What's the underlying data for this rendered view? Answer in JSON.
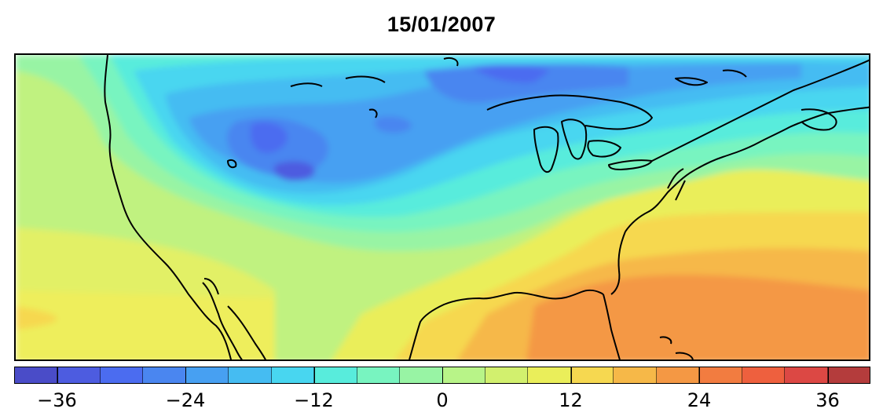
{
  "title": "15/01/2007",
  "map": {
    "variable_range": [
      -40,
      40
    ],
    "coastline_color": "#000000"
  },
  "colorbar": {
    "levels": [
      -40,
      -36,
      -32,
      -28,
      -24,
      -20,
      -16,
      -12,
      -8,
      -4,
      0,
      4,
      8,
      12,
      16,
      20,
      24,
      28,
      32,
      36,
      40
    ],
    "colors": [
      "#4a4cc8",
      "#4d5ce0",
      "#4b6cf0",
      "#4a86f0",
      "#47a0f2",
      "#45bcf2",
      "#48d6f0",
      "#58ecdc",
      "#78f4c0",
      "#98f4a4",
      "#b8f488",
      "#d2f06e",
      "#eaee5a",
      "#f6d850",
      "#f6b848",
      "#f49844",
      "#f27c40",
      "#ee603e",
      "#dc4844",
      "#b43c3c"
    ],
    "tick_labels": [
      "−36",
      "−24",
      "−12",
      "0",
      "12",
      "24",
      "36"
    ]
  }
}
